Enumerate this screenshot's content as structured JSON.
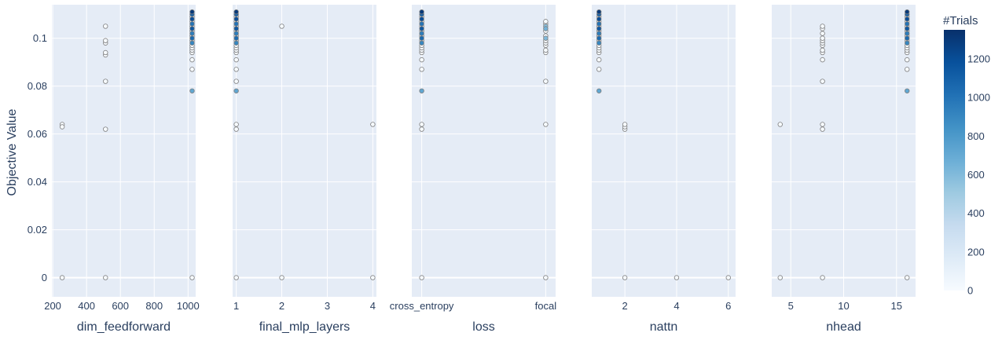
{
  "chart_data": {
    "type": "scatter",
    "ylabel": "Objective Value",
    "y_ticks": [
      0,
      0.02,
      0.04,
      0.06,
      0.08,
      0.1
    ],
    "y_tick_labels": [
      "0",
      "0.02",
      "0.04",
      "0.06",
      "0.08",
      "0.1"
    ],
    "ylim": [
      -0.008,
      0.114
    ],
    "grid": true,
    "colorbar": {
      "title": "#Trials",
      "range": [
        0,
        1350
      ],
      "ticks": [
        0,
        200,
        400,
        600,
        800,
        1000,
        1200
      ],
      "tick_labels": [
        "0",
        "200",
        "400",
        "600",
        "800",
        "1000",
        "1200"
      ],
      "colorscale": [
        "#f7fbff",
        "#deebf7",
        "#c6dbef",
        "#9ecae1",
        "#6baed6",
        "#4292c6",
        "#2171b5",
        "#08519c",
        "#08306b"
      ]
    },
    "panels": [
      {
        "xlabel": "dim_feedforward",
        "xlim": [
          195,
          1045
        ],
        "x_ticks": [
          200,
          400,
          600,
          800,
          1000
        ],
        "x_tick_labels": [
          "200",
          "400",
          "600",
          "800",
          "1000"
        ],
        "points": [
          {
            "x": 256,
            "y": 0,
            "t": 0
          },
          {
            "x": 256,
            "y": 0.064,
            "t": 0
          },
          {
            "x": 256,
            "y": 0.063,
            "t": 0
          },
          {
            "x": 512,
            "y": 0,
            "t": 0
          },
          {
            "x": 512,
            "y": 0.062,
            "t": 0
          },
          {
            "x": 512,
            "y": 0.082,
            "t": 0
          },
          {
            "x": 512,
            "y": 0.093,
            "t": 0
          },
          {
            "x": 512,
            "y": 0.094,
            "t": 0
          },
          {
            "x": 512,
            "y": 0.098,
            "t": 0
          },
          {
            "x": 512,
            "y": 0.099,
            "t": 0
          },
          {
            "x": 512,
            "y": 0.105,
            "t": 0
          },
          {
            "x": 1024,
            "y": 0,
            "t": 0
          },
          {
            "x": 1024,
            "y": 0.078,
            "t": 720
          },
          {
            "x": 1024,
            "y": 0.087,
            "t": 0
          },
          {
            "x": 1024,
            "y": 0.091,
            "t": 0
          },
          {
            "x": 1024,
            "y": 0.094,
            "t": 0
          },
          {
            "x": 1024,
            "y": 0.095,
            "t": 0
          },
          {
            "x": 1024,
            "y": 0.096,
            "t": 0
          },
          {
            "x": 1024,
            "y": 0.097,
            "t": 0
          },
          {
            "x": 1024,
            "y": 0.098,
            "t": 900
          },
          {
            "x": 1024,
            "y": 0.099,
            "t": 0
          },
          {
            "x": 1024,
            "y": 0.1,
            "t": 1050
          },
          {
            "x": 1024,
            "y": 0.101,
            "t": 0
          },
          {
            "x": 1024,
            "y": 0.102,
            "t": 950
          },
          {
            "x": 1024,
            "y": 0.103,
            "t": 0
          },
          {
            "x": 1024,
            "y": 0.104,
            "t": 1150
          },
          {
            "x": 1024,
            "y": 0.105,
            "t": 0
          },
          {
            "x": 1024,
            "y": 0.106,
            "t": 1000
          },
          {
            "x": 1024,
            "y": 0.107,
            "t": 0
          },
          {
            "x": 1024,
            "y": 0.108,
            "t": 1200
          },
          {
            "x": 1024,
            "y": 0.109,
            "t": 0
          },
          {
            "x": 1024,
            "y": 0.11,
            "t": 1100
          },
          {
            "x": 1024,
            "y": 0.111,
            "t": 1300
          }
        ]
      },
      {
        "xlabel": "final_mlp_layers",
        "xlim": [
          0.92,
          4.08
        ],
        "x_ticks": [
          1,
          2,
          3,
          4
        ],
        "x_tick_labels": [
          "1",
          "2",
          "3",
          "4"
        ],
        "points": [
          {
            "x": 1,
            "y": 0,
            "t": 0
          },
          {
            "x": 1,
            "y": 0.062,
            "t": 0
          },
          {
            "x": 1,
            "y": 0.064,
            "t": 0
          },
          {
            "x": 1,
            "y": 0.078,
            "t": 720
          },
          {
            "x": 1,
            "y": 0.082,
            "t": 0
          },
          {
            "x": 1,
            "y": 0.087,
            "t": 0
          },
          {
            "x": 1,
            "y": 0.091,
            "t": 0
          },
          {
            "x": 1,
            "y": 0.094,
            "t": 0
          },
          {
            "x": 1,
            "y": 0.095,
            "t": 0
          },
          {
            "x": 1,
            "y": 0.096,
            "t": 0
          },
          {
            "x": 1,
            "y": 0.097,
            "t": 0
          },
          {
            "x": 1,
            "y": 0.098,
            "t": 900
          },
          {
            "x": 1,
            "y": 0.099,
            "t": 0
          },
          {
            "x": 1,
            "y": 0.1,
            "t": 1050
          },
          {
            "x": 1,
            "y": 0.101,
            "t": 0
          },
          {
            "x": 1,
            "y": 0.102,
            "t": 950
          },
          {
            "x": 1,
            "y": 0.103,
            "t": 0
          },
          {
            "x": 1,
            "y": 0.104,
            "t": 1150
          },
          {
            "x": 1,
            "y": 0.105,
            "t": 0
          },
          {
            "x": 1,
            "y": 0.106,
            "t": 1000
          },
          {
            "x": 1,
            "y": 0.107,
            "t": 0
          },
          {
            "x": 1,
            "y": 0.108,
            "t": 1200
          },
          {
            "x": 1,
            "y": 0.109,
            "t": 0
          },
          {
            "x": 1,
            "y": 0.11,
            "t": 1100
          },
          {
            "x": 1,
            "y": 0.111,
            "t": 1300
          },
          {
            "x": 2,
            "y": 0,
            "t": 0
          },
          {
            "x": 2,
            "y": 0.105,
            "t": 0
          },
          {
            "x": 4,
            "y": 0,
            "t": 0
          },
          {
            "x": 4,
            "y": 0.064,
            "t": 0
          }
        ]
      },
      {
        "xlabel": "loss",
        "xlim": [
          -0.08,
          1.08
        ],
        "x_ticks": [
          0,
          1
        ],
        "x_tick_labels": [
          "cross_entropy",
          "focal"
        ],
        "points": [
          {
            "x": 0,
            "y": 0,
            "t": 0
          },
          {
            "x": 0,
            "y": 0.062,
            "t": 0
          },
          {
            "x": 0,
            "y": 0.064,
            "t": 0
          },
          {
            "x": 0,
            "y": 0.078,
            "t": 720
          },
          {
            "x": 0,
            "y": 0.087,
            "t": 0
          },
          {
            "x": 0,
            "y": 0.091,
            "t": 0
          },
          {
            "x": 0,
            "y": 0.094,
            "t": 0
          },
          {
            "x": 0,
            "y": 0.095,
            "t": 0
          },
          {
            "x": 0,
            "y": 0.096,
            "t": 0
          },
          {
            "x": 0,
            "y": 0.097,
            "t": 0
          },
          {
            "x": 0,
            "y": 0.098,
            "t": 900
          },
          {
            "x": 0,
            "y": 0.099,
            "t": 0
          },
          {
            "x": 0,
            "y": 0.1,
            "t": 1050
          },
          {
            "x": 0,
            "y": 0.101,
            "t": 0
          },
          {
            "x": 0,
            "y": 0.102,
            "t": 950
          },
          {
            "x": 0,
            "y": 0.103,
            "t": 0
          },
          {
            "x": 0,
            "y": 0.104,
            "t": 1150
          },
          {
            "x": 0,
            "y": 0.105,
            "t": 0
          },
          {
            "x": 0,
            "y": 0.106,
            "t": 1000
          },
          {
            "x": 0,
            "y": 0.107,
            "t": 0
          },
          {
            "x": 0,
            "y": 0.108,
            "t": 1200
          },
          {
            "x": 0,
            "y": 0.109,
            "t": 0
          },
          {
            "x": 0,
            "y": 0.11,
            "t": 1100
          },
          {
            "x": 0,
            "y": 0.111,
            "t": 1300
          },
          {
            "x": 1,
            "y": 0,
            "t": 0
          },
          {
            "x": 1,
            "y": 0.064,
            "t": 0
          },
          {
            "x": 1,
            "y": 0.082,
            "t": 0
          },
          {
            "x": 1,
            "y": 0.094,
            "t": 0
          },
          {
            "x": 1,
            "y": 0.095,
            "t": 0
          },
          {
            "x": 1,
            "y": 0.097,
            "t": 0
          },
          {
            "x": 1,
            "y": 0.098,
            "t": 0
          },
          {
            "x": 1,
            "y": 0.099,
            "t": 0
          },
          {
            "x": 1,
            "y": 0.1,
            "t": 600
          },
          {
            "x": 1,
            "y": 0.101,
            "t": 0
          },
          {
            "x": 1,
            "y": 0.103,
            "t": 0
          },
          {
            "x": 1,
            "y": 0.104,
            "t": 650
          },
          {
            "x": 1,
            "y": 0.105,
            "t": 580
          },
          {
            "x": 1,
            "y": 0.106,
            "t": 0
          },
          {
            "x": 1,
            "y": 0.107,
            "t": 0
          }
        ]
      },
      {
        "xlabel": "nattn",
        "xlim": [
          0.72,
          6.28
        ],
        "x_ticks": [
          2,
          4,
          6
        ],
        "x_tick_labels": [
          "2",
          "4",
          "6"
        ],
        "points": [
          {
            "x": 1,
            "y": 0.078,
            "t": 720
          },
          {
            "x": 1,
            "y": 0.087,
            "t": 0
          },
          {
            "x": 1,
            "y": 0.091,
            "t": 0
          },
          {
            "x": 1,
            "y": 0.094,
            "t": 0
          },
          {
            "x": 1,
            "y": 0.095,
            "t": 0
          },
          {
            "x": 1,
            "y": 0.096,
            "t": 0
          },
          {
            "x": 1,
            "y": 0.097,
            "t": 0
          },
          {
            "x": 1,
            "y": 0.098,
            "t": 900
          },
          {
            "x": 1,
            "y": 0.099,
            "t": 0
          },
          {
            "x": 1,
            "y": 0.1,
            "t": 1050
          },
          {
            "x": 1,
            "y": 0.101,
            "t": 0
          },
          {
            "x": 1,
            "y": 0.102,
            "t": 950
          },
          {
            "x": 1,
            "y": 0.103,
            "t": 0
          },
          {
            "x": 1,
            "y": 0.104,
            "t": 1150
          },
          {
            "x": 1,
            "y": 0.105,
            "t": 0
          },
          {
            "x": 1,
            "y": 0.106,
            "t": 1000
          },
          {
            "x": 1,
            "y": 0.107,
            "t": 0
          },
          {
            "x": 1,
            "y": 0.108,
            "t": 1200
          },
          {
            "x": 1,
            "y": 0.109,
            "t": 0
          },
          {
            "x": 1,
            "y": 0.11,
            "t": 1100
          },
          {
            "x": 1,
            "y": 0.111,
            "t": 1300
          },
          {
            "x": 2,
            "y": 0,
            "t": 0
          },
          {
            "x": 2,
            "y": 0.062,
            "t": 0
          },
          {
            "x": 2,
            "y": 0.063,
            "t": 0
          },
          {
            "x": 2,
            "y": 0.064,
            "t": 0
          },
          {
            "x": 4,
            "y": 0,
            "t": 0
          },
          {
            "x": 6,
            "y": 0,
            "t": 0
          }
        ]
      },
      {
        "xlabel": "nhead",
        "xlim": [
          3.2,
          16.8
        ],
        "x_ticks": [
          5,
          10,
          15
        ],
        "x_tick_labels": [
          "5",
          "10",
          "15"
        ],
        "points": [
          {
            "x": 4,
            "y": 0,
            "t": 0
          },
          {
            "x": 4,
            "y": 0.064,
            "t": 0
          },
          {
            "x": 8,
            "y": 0,
            "t": 0
          },
          {
            "x": 8,
            "y": 0.062,
            "t": 0
          },
          {
            "x": 8,
            "y": 0.064,
            "t": 0
          },
          {
            "x": 8,
            "y": 0.082,
            "t": 0
          },
          {
            "x": 8,
            "y": 0.091,
            "t": 0
          },
          {
            "x": 8,
            "y": 0.094,
            "t": 0
          },
          {
            "x": 8,
            "y": 0.095,
            "t": 0
          },
          {
            "x": 8,
            "y": 0.097,
            "t": 0
          },
          {
            "x": 8,
            "y": 0.098,
            "t": 0
          },
          {
            "x": 8,
            "y": 0.099,
            "t": 0
          },
          {
            "x": 8,
            "y": 0.1,
            "t": 0
          },
          {
            "x": 8,
            "y": 0.102,
            "t": 0
          },
          {
            "x": 8,
            "y": 0.104,
            "t": 0
          },
          {
            "x": 8,
            "y": 0.105,
            "t": 0
          },
          {
            "x": 16,
            "y": 0,
            "t": 0
          },
          {
            "x": 16,
            "y": 0.078,
            "t": 720
          },
          {
            "x": 16,
            "y": 0.087,
            "t": 0
          },
          {
            "x": 16,
            "y": 0.091,
            "t": 0
          },
          {
            "x": 16,
            "y": 0.094,
            "t": 0
          },
          {
            "x": 16,
            "y": 0.095,
            "t": 0
          },
          {
            "x": 16,
            "y": 0.096,
            "t": 0
          },
          {
            "x": 16,
            "y": 0.097,
            "t": 0
          },
          {
            "x": 16,
            "y": 0.098,
            "t": 900
          },
          {
            "x": 16,
            "y": 0.099,
            "t": 0
          },
          {
            "x": 16,
            "y": 0.1,
            "t": 1050
          },
          {
            "x": 16,
            "y": 0.101,
            "t": 0
          },
          {
            "x": 16,
            "y": 0.102,
            "t": 950
          },
          {
            "x": 16,
            "y": 0.103,
            "t": 0
          },
          {
            "x": 16,
            "y": 0.104,
            "t": 1150
          },
          {
            "x": 16,
            "y": 0.105,
            "t": 0
          },
          {
            "x": 16,
            "y": 0.106,
            "t": 1000
          },
          {
            "x": 16,
            "y": 0.107,
            "t": 0
          },
          {
            "x": 16,
            "y": 0.108,
            "t": 1200
          },
          {
            "x": 16,
            "y": 0.109,
            "t": 0
          },
          {
            "x": 16,
            "y": 0.11,
            "t": 1100
          },
          {
            "x": 16,
            "y": 0.111,
            "t": 1300
          }
        ]
      }
    ]
  },
  "colors": {
    "plot_bg": "#e5ecf6",
    "grid": "#ffffff",
    "text": "#2a3f5f",
    "marker_edge": "#7f7f7f"
  }
}
